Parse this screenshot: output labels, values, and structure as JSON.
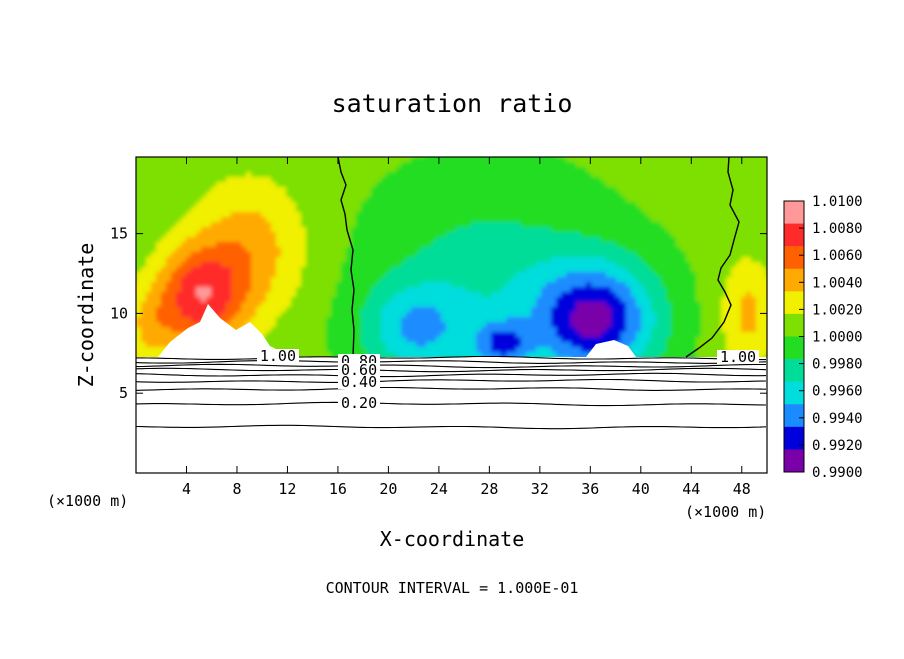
{
  "chart_data": {
    "type": "heatmap",
    "title": "saturation ratio",
    "xlabel": "X-coordinate",
    "ylabel": "Z-coordinate",
    "x_unit_left": "(×1000 m)",
    "x_unit_right": "(×1000 m)",
    "xlim": [
      0,
      50
    ],
    "ylim": [
      0,
      19.8
    ],
    "x_ticks": [
      4,
      8,
      12,
      16,
      20,
      24,
      28,
      32,
      36,
      40,
      44,
      48
    ],
    "y_ticks": [
      5,
      10,
      15
    ],
    "footer": "CONTOUR INTERVAL = 1.000E-01",
    "colorbar": {
      "labels": [
        "1.0100",
        "1.0080",
        "1.0060",
        "1.0040",
        "1.0020",
        "1.0000",
        "0.9980",
        "0.9960",
        "0.9940",
        "0.9920",
        "0.9900"
      ],
      "levels": [
        1.01,
        1.008,
        1.006,
        1.004,
        1.002,
        1.0,
        0.998,
        0.996,
        0.994,
        0.992,
        0.99
      ],
      "colors": [
        "#ff9999",
        "#ff2a2a",
        "#ff6000",
        "#ffaa00",
        "#f0f000",
        "#7de000",
        "#22dd22",
        "#00dd99",
        "#00dddd",
        "#1a8cff",
        "#0000dd",
        "#7a00aa"
      ]
    },
    "contour_labels": [
      "1.00",
      "0.80",
      "0.60",
      "0.40",
      "0.20",
      "1.00"
    ],
    "contour_levels": [
      1.0,
      0.9,
      0.8,
      0.7,
      0.6,
      0.5,
      0.4,
      0.3,
      0.2,
      0.1
    ],
    "cloud_base_z": 7.3,
    "colors": {
      "unsaturated_region": "#ffffff",
      "contour_line": "#000000",
      "axis": "#000000"
    }
  }
}
